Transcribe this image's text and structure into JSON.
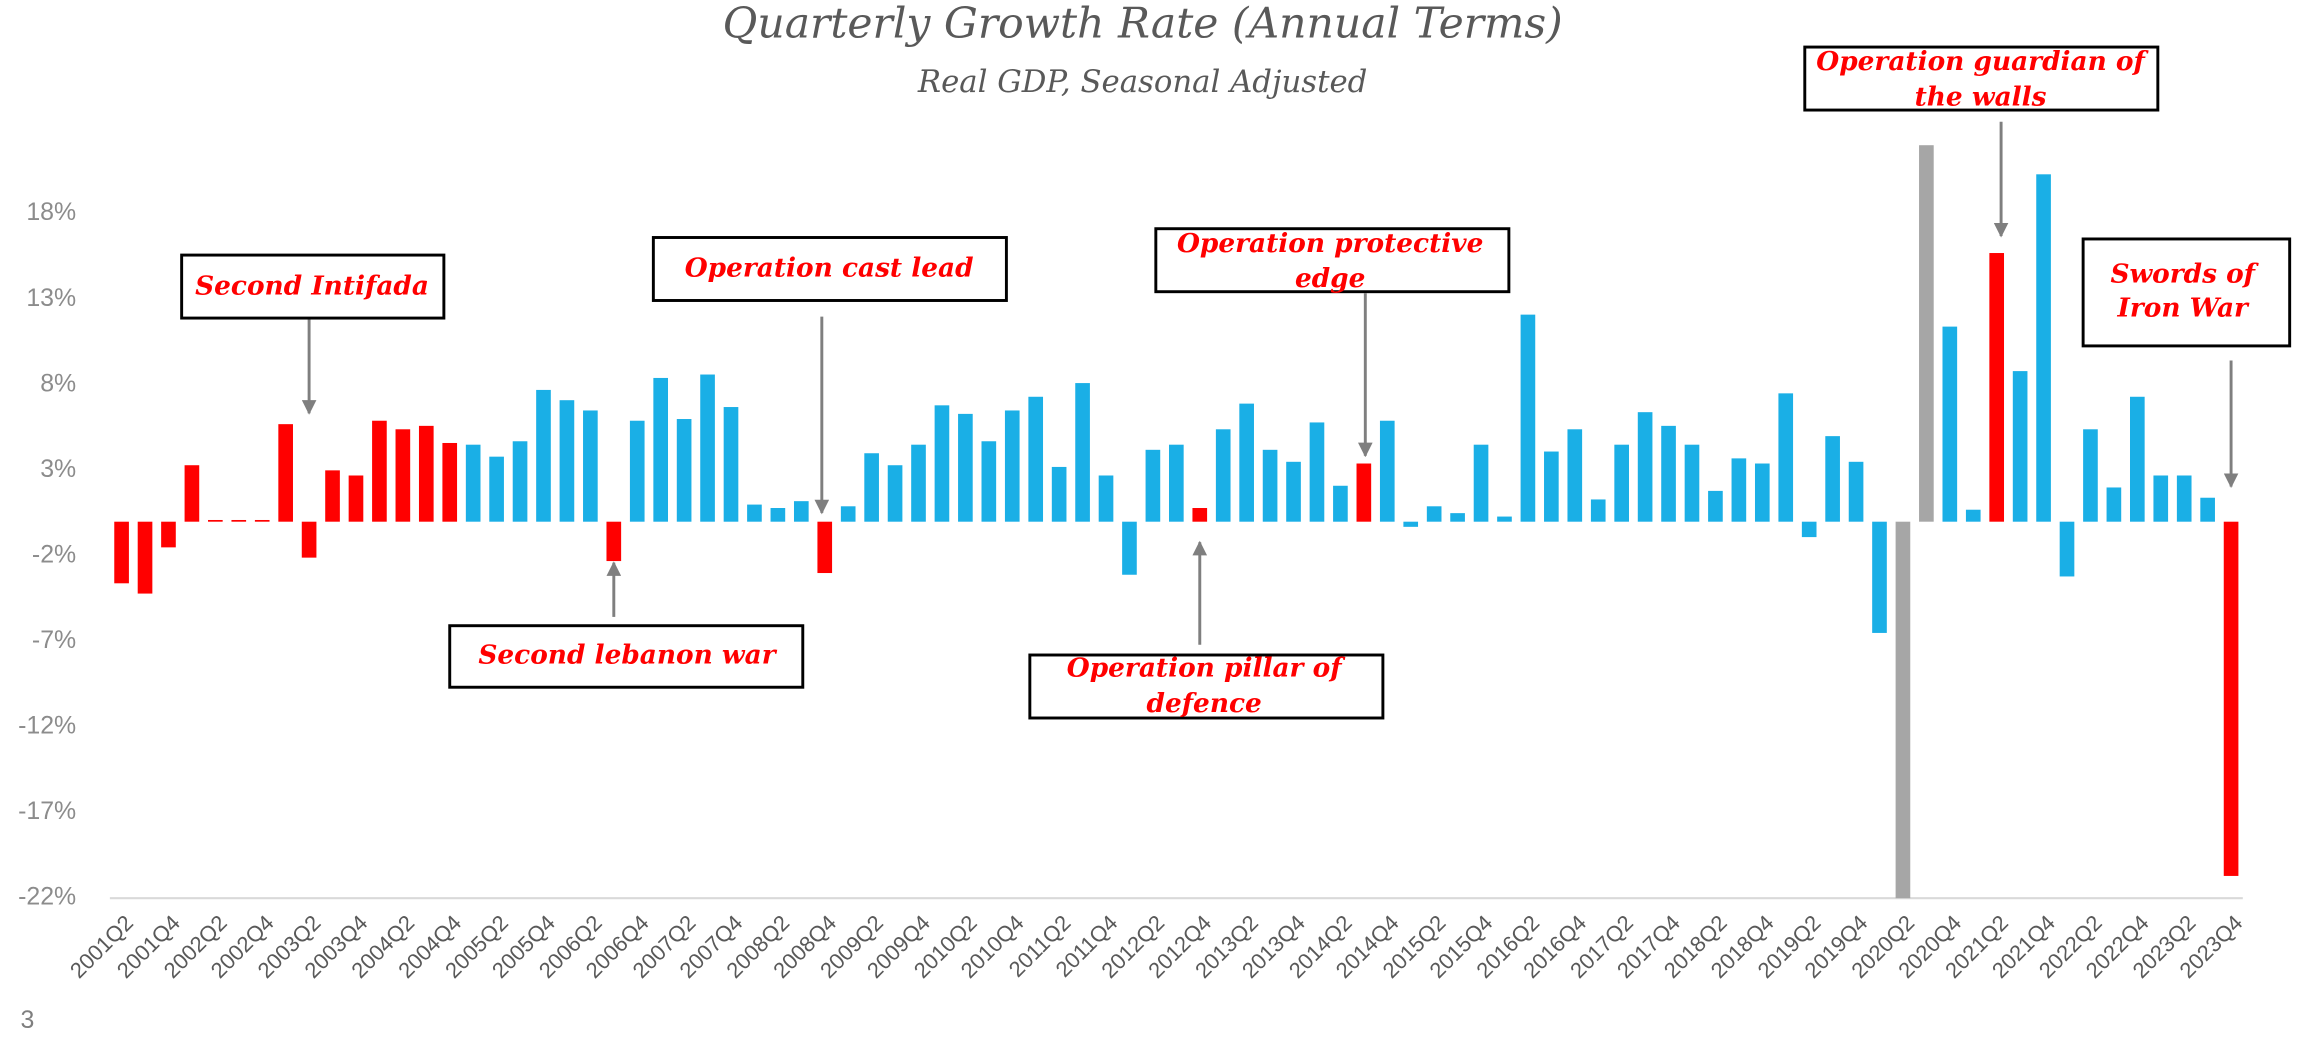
{
  "chart_data": {
    "type": "bar",
    "title": "Quarterly Growth Rate (Annual Terms)",
    "subtitle": "Real GDP, Seasonal Adjusted",
    "page_number": "3",
    "categories": [
      "2001Q2",
      null,
      "2001Q4",
      null,
      "2002Q2",
      null,
      "2002Q4",
      null,
      "2003Q2",
      null,
      "2003Q4",
      null,
      "2004Q2",
      null,
      "2004Q4",
      null,
      "2005Q2",
      null,
      "2005Q4",
      null,
      "2006Q2",
      null,
      "2006Q4",
      null,
      "2007Q2",
      null,
      "2007Q4",
      null,
      "2008Q2",
      null,
      "2008Q4",
      null,
      "2009Q2",
      null,
      "2009Q4",
      null,
      "2010Q2",
      null,
      "2010Q4",
      null,
      "2011Q2",
      null,
      "2011Q4",
      null,
      "2012Q2",
      null,
      "2012Q4",
      null,
      "2013Q2",
      null,
      "2013Q4",
      null,
      "2014Q2",
      null,
      "2014Q4",
      null,
      "2015Q2",
      null,
      "2015Q4",
      null,
      "2016Q2",
      null,
      "2016Q4",
      null,
      "2017Q2",
      null,
      "2017Q4",
      null,
      "2018Q2",
      null,
      "2018Q4",
      null,
      "2019Q2",
      null,
      "2019Q4",
      null,
      "2020Q2",
      null,
      "2020Q4",
      null,
      "2021Q2",
      null,
      "2021Q4",
      null,
      "2022Q2",
      null,
      "2022Q4",
      null,
      "2023Q2",
      null,
      "2023Q4"
    ],
    "values": [
      -3.6,
      -4.2,
      -1.5,
      3.3,
      0.1,
      0.1,
      0.1,
      5.7,
      -2.1,
      3.0,
      2.7,
      5.9,
      5.4,
      5.6,
      4.6,
      4.5,
      3.8,
      4.7,
      7.7,
      7.1,
      6.5,
      -2.3,
      5.9,
      8.4,
      6.0,
      8.6,
      6.7,
      1.0,
      0.8,
      1.2,
      -3.0,
      0.9,
      4.0,
      3.3,
      4.5,
      6.8,
      6.3,
      4.7,
      6.5,
      7.3,
      3.2,
      8.1,
      2.7,
      -3.1,
      4.2,
      4.5,
      0.8,
      5.4,
      6.9,
      4.2,
      3.5,
      5.8,
      2.1,
      3.4,
      5.9,
      -0.3,
      0.9,
      0.5,
      4.5,
      0.3,
      12.1,
      4.1,
      5.4,
      1.3,
      4.5,
      6.4,
      5.6,
      4.5,
      1.8,
      3.7,
      3.4,
      7.5,
      -0.9,
      5.0,
      3.5,
      -6.5,
      -22,
      22,
      11.4,
      0.7,
      15.7,
      8.8,
      20.3,
      -3.2,
      5.4,
      2.0,
      7.3,
      2.7,
      2.7,
      1.4,
      -20.7
    ],
    "colors": [
      "#ff0000",
      "#ff0000",
      "#ff0000",
      "#ff0000",
      "#ff0000",
      "#ff0000",
      "#ff0000",
      "#ff0000",
      "#ff0000",
      "#ff0000",
      "#ff0000",
      "#ff0000",
      "#ff0000",
      "#ff0000",
      "#ff0000",
      "#1aafe6",
      "#1aafe6",
      "#1aafe6",
      "#1aafe6",
      "#1aafe6",
      "#1aafe6",
      "#ff0000",
      "#1aafe6",
      "#1aafe6",
      "#1aafe6",
      "#1aafe6",
      "#1aafe6",
      "#1aafe6",
      "#1aafe6",
      "#1aafe6",
      "#ff0000",
      "#1aafe6",
      "#1aafe6",
      "#1aafe6",
      "#1aafe6",
      "#1aafe6",
      "#1aafe6",
      "#1aafe6",
      "#1aafe6",
      "#1aafe6",
      "#1aafe6",
      "#1aafe6",
      "#1aafe6",
      "#1aafe6",
      "#1aafe6",
      "#1aafe6",
      "#ff0000",
      "#1aafe6",
      "#1aafe6",
      "#1aafe6",
      "#1aafe6",
      "#1aafe6",
      "#1aafe6",
      "#ff0000",
      "#1aafe6",
      "#1aafe6",
      "#1aafe6",
      "#1aafe6",
      "#1aafe6",
      "#1aafe6",
      "#1aafe6",
      "#1aafe6",
      "#1aafe6",
      "#1aafe6",
      "#1aafe6",
      "#1aafe6",
      "#1aafe6",
      "#1aafe6",
      "#1aafe6",
      "#1aafe6",
      "#1aafe6",
      "#1aafe6",
      "#1aafe6",
      "#1aafe6",
      "#1aafe6",
      "#1aafe6",
      "#a6a6a6",
      "#a6a6a6",
      "#1aafe6",
      "#1aafe6",
      "#ff0000",
      "#1aafe6",
      "#1aafe6",
      "#1aafe6",
      "#1aafe6",
      "#1aafe6",
      "#1aafe6",
      "#1aafe6",
      "#1aafe6",
      "#1aafe6",
      "#ff0000"
    ],
    "ylim": [
      -22,
      22
    ],
    "yticks": [
      {
        "value": -22,
        "label": "-22%"
      },
      {
        "value": -17,
        "label": "-17%"
      },
      {
        "value": -12,
        "label": "-12%"
      },
      {
        "value": -7,
        "label": "-7%"
      },
      {
        "value": -2,
        "label": "-2%"
      },
      {
        "value": 3,
        "label": "3%"
      },
      {
        "value": 8,
        "label": "8%"
      },
      {
        "value": 13,
        "label": "13%"
      },
      {
        "value": 18,
        "label": "18%"
      }
    ],
    "grid": false,
    "annotations": [
      {
        "lines": [
          "Second Intifada"
        ]
      },
      {
        "lines": [
          "Operation cast lead"
        ]
      },
      {
        "lines": [
          "Second lebanon war"
        ]
      },
      {
        "lines": [
          "Operation protective",
          "edge"
        ]
      },
      {
        "lines": [
          "Operation pillar of",
          "defence"
        ]
      },
      {
        "lines": [
          "Operation guardian of",
          "the walls"
        ]
      },
      {
        "lines": [
          "Swords of",
          "Iron War"
        ]
      }
    ]
  }
}
